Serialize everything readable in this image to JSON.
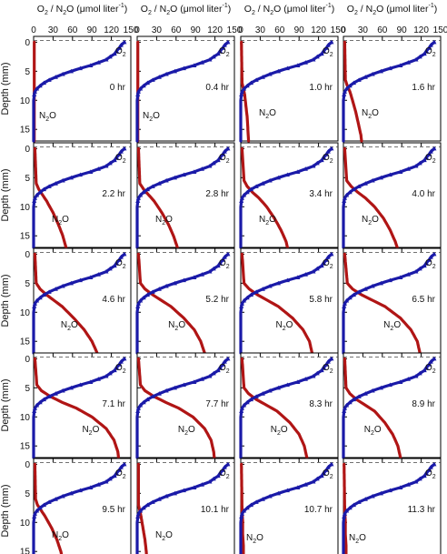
{
  "header_label": {
    "o2": "O",
    "o2_sub": "2",
    "slash": " / ",
    "n2o_n": "N",
    "n2o_sub": "2",
    "n2o_o": "O (μmol liter",
    "exp": "-1",
    "close": ")"
  },
  "y_axis_label": "Depth (mm)",
  "x_ticks": [
    "0",
    "30",
    "60",
    "90",
    "120",
    "150"
  ],
  "y_ticks": [
    "0",
    "5",
    "10",
    "15"
  ],
  "series_labels": {
    "o2": {
      "main": "O",
      "sub": "2"
    },
    "n2o": {
      "main1": "N",
      "sub": "2",
      "main2": "O"
    }
  },
  "colors": {
    "o2": "#1a1aa8",
    "n2o": "#b01515",
    "dash": "#444444",
    "frame": "#000000"
  },
  "chart_data": {
    "type": "line",
    "layout": "5x4 small multiples",
    "xlim": [
      0,
      150
    ],
    "ylim": [
      17,
      -1
    ],
    "xlabel": "O2 / N2O (μmol liter-1)",
    "ylabel": "Depth (mm)",
    "dashed_line_depth": -0.3,
    "o2_profile": {
      "depth": [
        0,
        0.5,
        1,
        1.5,
        2,
        2.5,
        3,
        3.5,
        4,
        4.5,
        5,
        5.5,
        6,
        6.5,
        7,
        7.5,
        8,
        8.5,
        9,
        10,
        12,
        14,
        16,
        17
      ],
      "value": [
        140,
        135,
        132,
        128,
        125,
        118,
        112,
        100,
        88,
        72,
        58,
        45,
        34,
        24,
        16,
        10,
        5,
        2,
        1,
        0,
        0,
        0,
        0,
        0
      ]
    },
    "panels": [
      {
        "time": "0 hr",
        "n2o": {
          "depth": [
            0,
            8,
            10,
            12,
            14,
            16,
            17
          ],
          "value": [
            1,
            1,
            1,
            1,
            1,
            1,
            1
          ]
        }
      },
      {
        "time": "0.4 hr",
        "n2o": {
          "depth": [
            0,
            8,
            10,
            12,
            14,
            16,
            17
          ],
          "value": [
            1,
            1,
            1,
            1,
            1,
            1,
            1
          ]
        }
      },
      {
        "time": "1.0 hr",
        "n2o": {
          "depth": [
            0,
            7,
            8,
            9,
            11,
            13,
            15,
            17
          ],
          "value": [
            1,
            2,
            4,
            6,
            8,
            10,
            11,
            12
          ]
        }
      },
      {
        "time": "1.6 hr",
        "n2o": {
          "depth": [
            0,
            6.5,
            7.5,
            8.5,
            10,
            12,
            14,
            16,
            17
          ],
          "value": [
            2,
            3,
            6,
            10,
            14,
            19,
            23,
            27,
            28
          ]
        }
      },
      {
        "time": "2.2 hr",
        "n2o": {
          "depth": [
            0,
            6,
            7,
            8,
            9,
            11,
            13,
            15,
            17
          ],
          "value": [
            2,
            4,
            8,
            14,
            20,
            30,
            38,
            45,
            50
          ]
        }
      },
      {
        "time": "2.8 hr",
        "n2o": {
          "depth": [
            0,
            6,
            7,
            8,
            9,
            11,
            13,
            15,
            17
          ],
          "value": [
            2,
            4,
            10,
            18,
            26,
            38,
            48,
            56,
            62
          ]
        }
      },
      {
        "time": "3.4 hr",
        "n2o": {
          "depth": [
            0,
            5.5,
            6.5,
            7.5,
            8.5,
            10,
            12,
            14,
            16,
            17
          ],
          "value": [
            2,
            5,
            10,
            18,
            28,
            40,
            52,
            62,
            70,
            72
          ]
        }
      },
      {
        "time": "4.0 hr",
        "n2o": {
          "depth": [
            0,
            5.5,
            6.5,
            7.5,
            8.5,
            10,
            12,
            14,
            16,
            17
          ],
          "value": [
            2,
            5,
            12,
            22,
            34,
            48,
            62,
            72,
            80,
            83
          ]
        }
      },
      {
        "time": "4.6 hr",
        "n2o": {
          "depth": [
            0,
            5,
            6,
            7,
            8,
            9,
            11,
            13,
            15,
            17
          ],
          "value": [
            2,
            4,
            10,
            20,
            32,
            44,
            62,
            78,
            90,
            98
          ]
        }
      },
      {
        "time": "5.2 hr",
        "n2o": {
          "depth": [
            0,
            5,
            6,
            7,
            8,
            9,
            11,
            13,
            15,
            17
          ],
          "value": [
            2,
            5,
            12,
            24,
            38,
            52,
            72,
            88,
            98,
            104
          ]
        }
      },
      {
        "time": "5.8 hr",
        "n2o": {
          "depth": [
            0,
            5,
            6,
            7,
            8,
            9,
            11,
            13,
            15,
            17
          ],
          "value": [
            2,
            5,
            13,
            26,
            42,
            58,
            80,
            96,
            106,
            110
          ]
        }
      },
      {
        "time": "6.5 hr",
        "n2o": {
          "depth": [
            0,
            5,
            6,
            7,
            8,
            9,
            11,
            13,
            15,
            17
          ],
          "value": [
            2,
            6,
            14,
            28,
            46,
            64,
            88,
            104,
            114,
            118
          ]
        }
      },
      {
        "time": "7.1 hr",
        "n2o": {
          "depth": [
            0,
            4.5,
            5.5,
            6.5,
            7.5,
            8.5,
            10,
            12,
            14,
            16,
            17
          ],
          "value": [
            2,
            5,
            12,
            26,
            44,
            66,
            90,
            112,
            124,
            130,
            131
          ]
        }
      },
      {
        "time": "7.7 hr",
        "n2o": {
          "depth": [
            0,
            4.5,
            5.5,
            6.5,
            7.5,
            8.5,
            10,
            12,
            14,
            16,
            17
          ],
          "value": [
            2,
            5,
            12,
            26,
            44,
            64,
            86,
            104,
            114,
            118,
            119
          ]
        }
      },
      {
        "time": "8.3 hr",
        "n2o": {
          "depth": [
            0,
            5,
            6,
            7,
            8,
            9,
            11,
            13,
            15,
            17
          ],
          "value": [
            2,
            5,
            12,
            24,
            40,
            56,
            76,
            90,
            98,
            102
          ]
        }
      },
      {
        "time": "8.9 hr",
        "n2o": {
          "depth": [
            0,
            5,
            6,
            7,
            8,
            9,
            11,
            13,
            15,
            17
          ],
          "value": [
            2,
            4,
            10,
            20,
            34,
            48,
            64,
            76,
            84,
            88
          ]
        }
      },
      {
        "time": "9.5 hr",
        "n2o": {
          "depth": [
            0,
            6,
            7,
            8,
            9,
            11,
            13,
            15,
            17
          ],
          "value": [
            2,
            3,
            6,
            12,
            18,
            28,
            36,
            42,
            46
          ]
        }
      },
      {
        "time": "10.1 hr",
        "n2o": {
          "depth": [
            0,
            7,
            8,
            9,
            11,
            13,
            15,
            17
          ],
          "value": [
            2,
            2,
            4,
            6,
            9,
            12,
            14,
            15
          ]
        }
      },
      {
        "time": "10.7 hr",
        "n2o": {
          "depth": [
            0,
            8,
            10,
            12,
            14,
            16,
            17
          ],
          "value": [
            1,
            2,
            3,
            3,
            4,
            4,
            4
          ]
        }
      },
      {
        "time": "11.3 hr",
        "n2o": {
          "depth": [
            0,
            8,
            10,
            12,
            14,
            16,
            17
          ],
          "value": [
            1,
            2,
            3,
            3,
            4,
            4,
            4
          ]
        }
      }
    ]
  }
}
